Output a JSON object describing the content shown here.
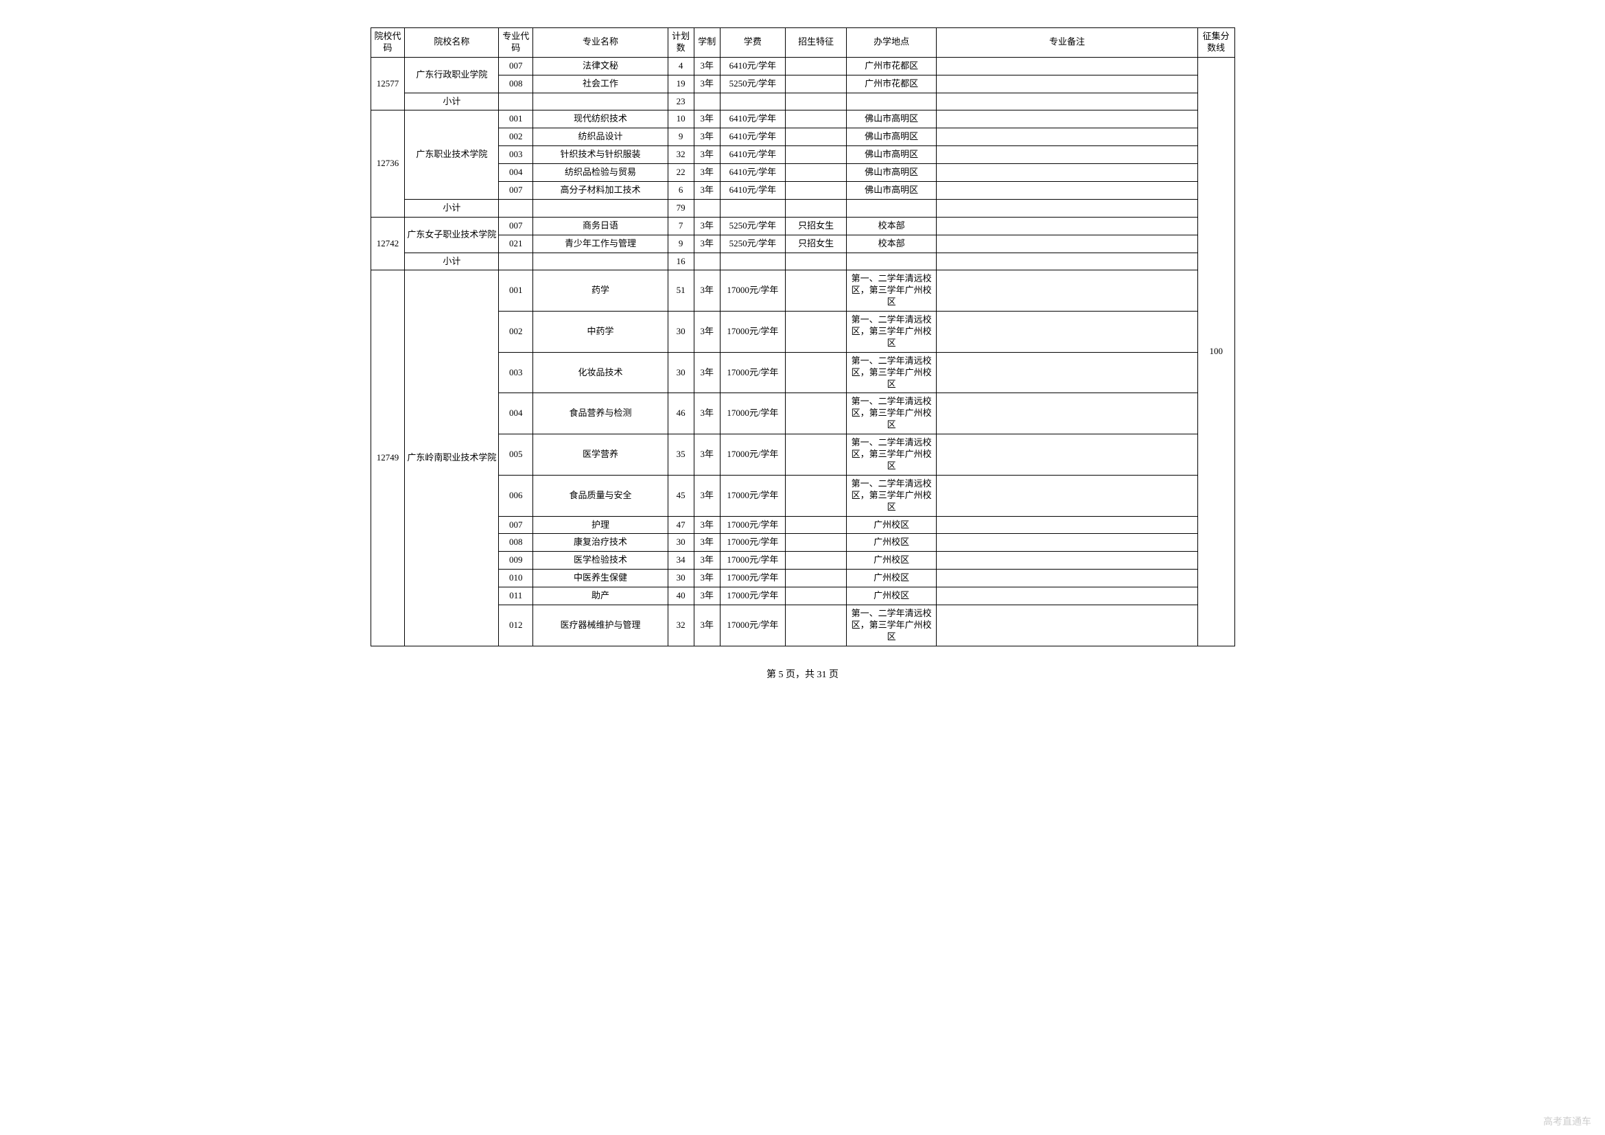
{
  "header": {
    "school_code": "院校代码",
    "school_name": "院校名称",
    "major_code": "专业代码",
    "major_name": "专业名称",
    "plan": "计划数",
    "years": "学制",
    "tuition": "学费",
    "feature": "招生特征",
    "location": "办学地点",
    "note": "专业备注",
    "score": "征集分数线"
  },
  "score_value": "100",
  "groups": [
    {
      "school_code": "12577",
      "school_name": "广东行政职业学院",
      "majors": [
        {
          "code": "007",
          "name": "法律文秘",
          "plan": "4",
          "years": "3年",
          "tuition": "6410元/学年",
          "feature": "",
          "location": "广州市花都区",
          "note": ""
        },
        {
          "code": "008",
          "name": "社会工作",
          "plan": "19",
          "years": "3年",
          "tuition": "5250元/学年",
          "feature": "",
          "location": "广州市花都区",
          "note": ""
        }
      ],
      "subtotal_label": "小计",
      "subtotal_plan": "23"
    },
    {
      "school_code": "12736",
      "school_name": "广东职业技术学院",
      "majors": [
        {
          "code": "001",
          "name": "现代纺织技术",
          "plan": "10",
          "years": "3年",
          "tuition": "6410元/学年",
          "feature": "",
          "location": "佛山市高明区",
          "note": ""
        },
        {
          "code": "002",
          "name": "纺织品设计",
          "plan": "9",
          "years": "3年",
          "tuition": "6410元/学年",
          "feature": "",
          "location": "佛山市高明区",
          "note": ""
        },
        {
          "code": "003",
          "name": "针织技术与针织服装",
          "plan": "32",
          "years": "3年",
          "tuition": "6410元/学年",
          "feature": "",
          "location": "佛山市高明区",
          "note": ""
        },
        {
          "code": "004",
          "name": "纺织品检验与贸易",
          "plan": "22",
          "years": "3年",
          "tuition": "6410元/学年",
          "feature": "",
          "location": "佛山市高明区",
          "note": ""
        },
        {
          "code": "007",
          "name": "高分子材料加工技术",
          "plan": "6",
          "years": "3年",
          "tuition": "6410元/学年",
          "feature": "",
          "location": "佛山市高明区",
          "note": ""
        }
      ],
      "subtotal_label": "小计",
      "subtotal_plan": "79"
    },
    {
      "school_code": "12742",
      "school_name": "广东女子职业技术学院",
      "majors": [
        {
          "code": "007",
          "name": "商务日语",
          "plan": "7",
          "years": "3年",
          "tuition": "5250元/学年",
          "feature": "只招女生",
          "location": "校本部",
          "note": ""
        },
        {
          "code": "021",
          "name": "青少年工作与管理",
          "plan": "9",
          "years": "3年",
          "tuition": "5250元/学年",
          "feature": "只招女生",
          "location": "校本部",
          "note": ""
        }
      ],
      "subtotal_label": "小计",
      "subtotal_plan": "16"
    },
    {
      "school_code": "12749",
      "school_name": "广东岭南职业技术学院",
      "majors": [
        {
          "code": "001",
          "name": "药学",
          "plan": "51",
          "years": "3年",
          "tuition": "17000元/学年",
          "feature": "",
          "location": "第一、二学年清远校区，第三学年广州校区",
          "note": ""
        },
        {
          "code": "002",
          "name": "中药学",
          "plan": "30",
          "years": "3年",
          "tuition": "17000元/学年",
          "feature": "",
          "location": "第一、二学年清远校区，第三学年广州校区",
          "note": ""
        },
        {
          "code": "003",
          "name": "化妆品技术",
          "plan": "30",
          "years": "3年",
          "tuition": "17000元/学年",
          "feature": "",
          "location": "第一、二学年清远校区，第三学年广州校区",
          "note": ""
        },
        {
          "code": "004",
          "name": "食品营养与检测",
          "plan": "46",
          "years": "3年",
          "tuition": "17000元/学年",
          "feature": "",
          "location": "第一、二学年清远校区，第三学年广州校区",
          "note": ""
        },
        {
          "code": "005",
          "name": "医学营养",
          "plan": "35",
          "years": "3年",
          "tuition": "17000元/学年",
          "feature": "",
          "location": "第一、二学年清远校区，第三学年广州校区",
          "note": ""
        },
        {
          "code": "006",
          "name": "食品质量与安全",
          "plan": "45",
          "years": "3年",
          "tuition": "17000元/学年",
          "feature": "",
          "location": "第一、二学年清远校区，第三学年广州校区",
          "note": ""
        },
        {
          "code": "007",
          "name": "护理",
          "plan": "47",
          "years": "3年",
          "tuition": "17000元/学年",
          "feature": "",
          "location": "广州校区",
          "note": ""
        },
        {
          "code": "008",
          "name": "康复治疗技术",
          "plan": "30",
          "years": "3年",
          "tuition": "17000元/学年",
          "feature": "",
          "location": "广州校区",
          "note": ""
        },
        {
          "code": "009",
          "name": "医学检验技术",
          "plan": "34",
          "years": "3年",
          "tuition": "17000元/学年",
          "feature": "",
          "location": "广州校区",
          "note": ""
        },
        {
          "code": "010",
          "name": "中医养生保健",
          "plan": "30",
          "years": "3年",
          "tuition": "17000元/学年",
          "feature": "",
          "location": "广州校区",
          "note": ""
        },
        {
          "code": "011",
          "name": "助产",
          "plan": "40",
          "years": "3年",
          "tuition": "17000元/学年",
          "feature": "",
          "location": "广州校区",
          "note": ""
        },
        {
          "code": "012",
          "name": "医疗器械维护与管理",
          "plan": "32",
          "years": "3年",
          "tuition": "17000元/学年",
          "feature": "",
          "location": "第一、二学年清远校区，第三学年广州校区",
          "note": ""
        }
      ],
      "subtotal_label": "",
      "subtotal_plan": ""
    }
  ],
  "footer": "第 5 页，共 31 页",
  "watermark": "高考直通车"
}
